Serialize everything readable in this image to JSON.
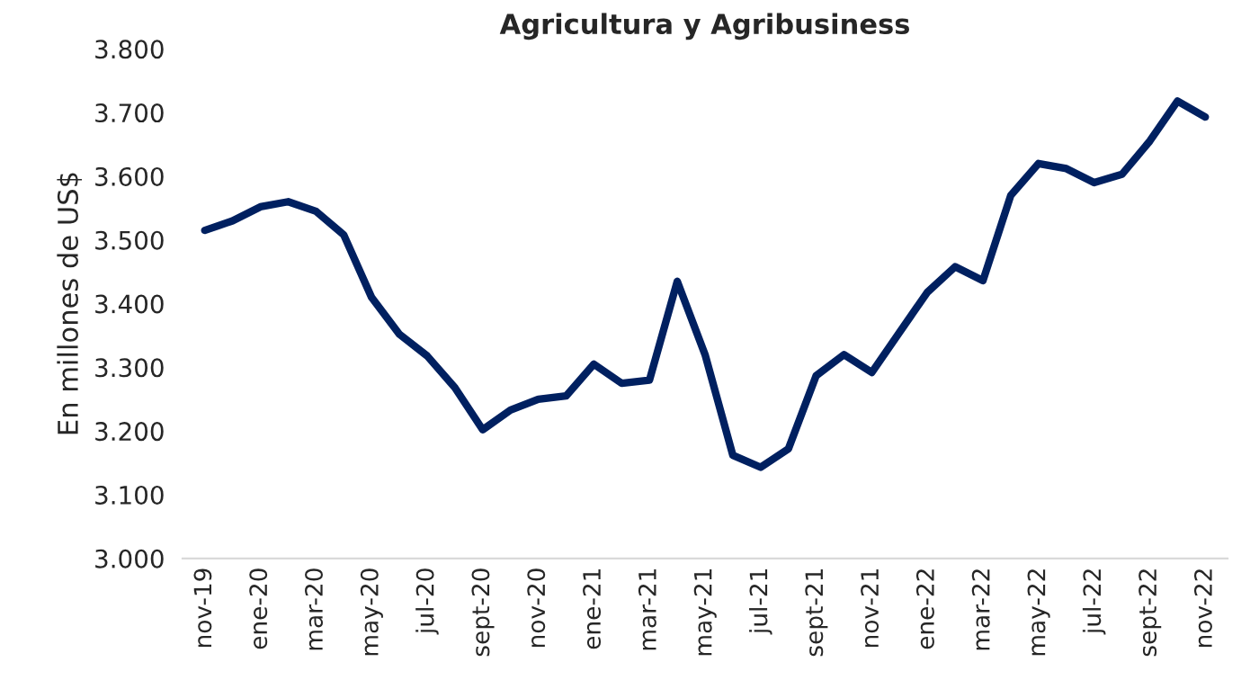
{
  "chart_data": {
    "type": "line",
    "title": "Agricultura y Agribusiness",
    "ylabel": "En millones de US$",
    "categories": [
      "nov-19",
      null,
      "ene-20",
      null,
      "mar-20",
      null,
      "may-20",
      null,
      "jul-20",
      null,
      "sept-20",
      null,
      "nov-20",
      null,
      "ene-21",
      null,
      "mar-21",
      null,
      "may-21",
      null,
      "jul-21",
      null,
      "sept-21",
      null,
      "nov-21",
      null,
      "ene-22",
      null,
      "mar-22",
      null,
      "may-22",
      null,
      "jul-22",
      null,
      "sept-22",
      null,
      "nov-22"
    ],
    "series": [
      {
        "color": "#002060",
        "values": [
          3.515,
          3.53,
          3.552,
          3.56,
          3.545,
          3.508,
          3.41,
          3.352,
          3.318,
          3.268,
          3.202,
          3.233,
          3.25,
          3.255,
          3.305,
          3.275,
          3.28,
          3.435,
          3.32,
          3.162,
          3.143,
          3.172,
          3.287,
          3.32,
          3.292,
          3.355,
          3.418,
          3.458,
          3.436,
          3.57,
          3.62,
          3.612,
          3.59,
          3.603,
          3.655,
          3.718,
          3.693
        ]
      }
    ],
    "ylim": [
      3.0,
      3.8
    ],
    "yticks": [
      {
        "value": 3.0,
        "label": "3.000"
      },
      {
        "value": 3.1,
        "label": "3.100"
      },
      {
        "value": 3.2,
        "label": "3.200"
      },
      {
        "value": 3.3,
        "label": "3.300"
      },
      {
        "value": 3.4,
        "label": "3.400"
      },
      {
        "value": 3.5,
        "label": "3.500"
      },
      {
        "value": 3.6,
        "label": "3.600"
      },
      {
        "value": 3.7,
        "label": "3.700"
      },
      {
        "value": 3.8,
        "label": "3.800"
      }
    ],
    "grid": false,
    "legend": false,
    "marker": "none",
    "line_style": "solid"
  }
}
